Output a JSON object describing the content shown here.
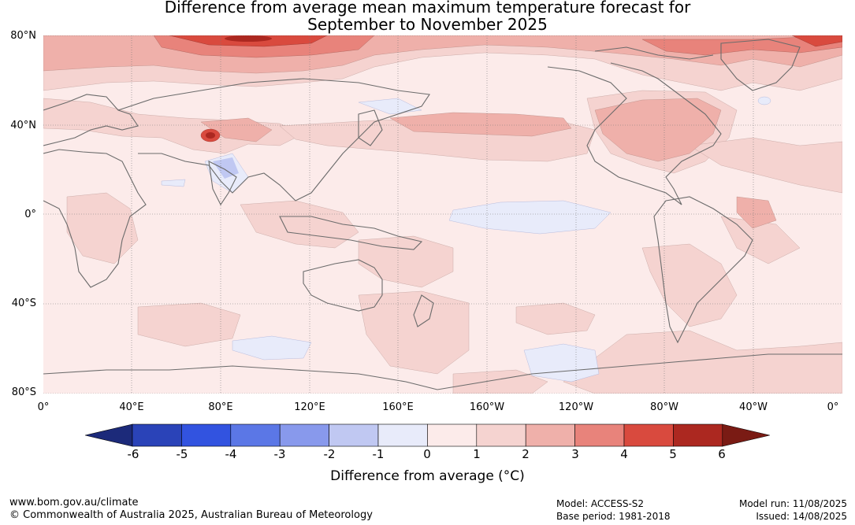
{
  "title_line1": "Difference from average mean maximum temperature forecast for",
  "title_line2": "September to November 2025",
  "lat_labels": [
    "80°N",
    "40°N",
    "0°",
    "40°S",
    "80°S"
  ],
  "lon_labels": [
    "0°",
    "40°E",
    "80°E",
    "120°E",
    "160°E",
    "160°W",
    "120°W",
    "80°W",
    "40°W",
    "0°"
  ],
  "colorbar": {
    "ticks": [
      "-6",
      "-5",
      "-4",
      "-3",
      "-2",
      "-1",
      "0",
      "1",
      "2",
      "3",
      "4",
      "5",
      "6"
    ],
    "colors": [
      "#1c2a7a",
      "#2a43b8",
      "#3253e0",
      "#5b77e6",
      "#8899ec",
      "#c0c8f2",
      "#e8ebfa",
      "#fcebea",
      "#f5d3d0",
      "#efb0aa",
      "#e8837b",
      "#d94a3e",
      "#ac2820",
      "#7a1b14"
    ],
    "label": "Difference from average (°C)"
  },
  "footer": {
    "url": "www.bom.gov.au/climate",
    "copyright": "© Commonwealth of Australia 2025, Australian Bureau of Meteorology",
    "model": "Model: ACCESS-S2",
    "base_period": "Base period: 1981-2018",
    "model_run": "Model run: 11/08/2025",
    "issued": "Issued: 14/08/2025"
  }
}
